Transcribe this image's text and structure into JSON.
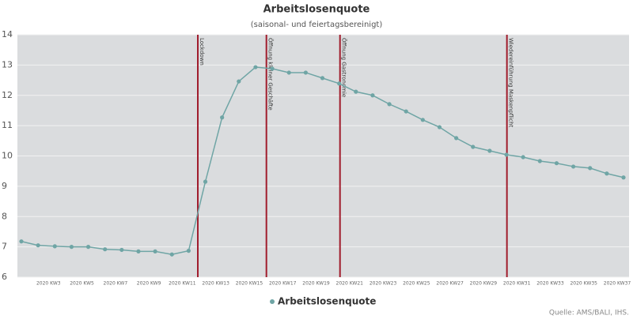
{
  "chart_data": {
    "type": "line",
    "title": "Arbeitslosenquote",
    "subtitle": "(saisonal- und feiertagsbereinigt)",
    "source": "Quelle: AMS/BALI, IHS.",
    "categories": [
      null,
      null,
      "2020 KW3",
      null,
      "2020 KW5",
      null,
      "2020 KW7",
      null,
      "2020 KW9",
      null,
      "2020 KW11",
      null,
      "2020 KW13",
      null,
      "2020 KW15",
      null,
      "2020 KW17",
      null,
      "2020 KW19",
      null,
      "2020 KW21",
      null,
      "2020 KW23",
      null,
      "2020 KW25",
      null,
      "2020 KW27",
      null,
      "2020 KW29",
      null,
      "2020 KW31",
      null,
      "2020 KW33",
      null,
      "2020 KW35",
      null,
      "2020 KW37"
    ],
    "series": [
      {
        "name": "Arbeitslosenquote",
        "color": "#6fa5a5",
        "values": [
          7.18,
          7.05,
          7.02,
          7.0,
          7.0,
          6.92,
          6.9,
          6.85,
          6.85,
          6.75,
          6.87,
          9.15,
          11.27,
          12.46,
          12.93,
          12.88,
          12.75,
          12.75,
          12.57,
          12.39,
          12.12,
          12.0,
          11.71,
          11.47,
          11.19,
          10.95,
          10.59,
          10.3,
          10.17,
          10.04,
          9.96,
          9.83,
          9.76,
          9.65,
          9.6,
          9.42,
          9.29
        ]
      }
    ],
    "ylim": [
      6,
      14
    ],
    "yticks": [
      6,
      7,
      8,
      9,
      10,
      11,
      12,
      13,
      14
    ],
    "grid": true,
    "annotations": [
      {
        "label": "Lockdown",
        "week": 11.55,
        "color": "#a01c2c"
      },
      {
        "label": "Öffnung kleiner Geschäfte",
        "week": 15.65,
        "color": "#a01c2c"
      },
      {
        "label": "Öffnung Gastronomie",
        "week": 20.05,
        "color": "#a01c2c"
      },
      {
        "label": "Wiedereinführung Maskenpflicht",
        "week": 30.03,
        "color": "#a01c2c"
      }
    ]
  }
}
